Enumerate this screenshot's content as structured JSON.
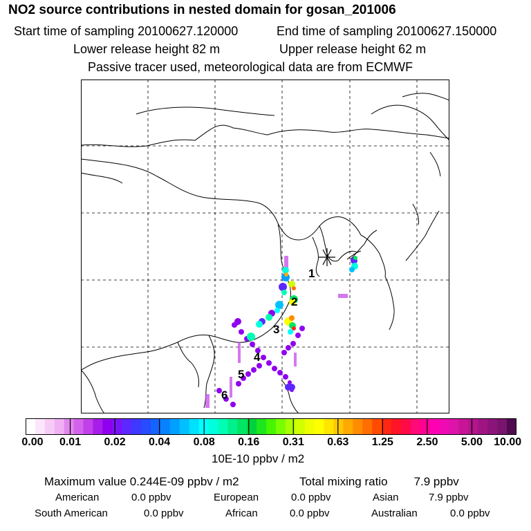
{
  "header": {
    "title": "NO2 source contributions in nested domain for gosan_201006",
    "start_label": "Start time of sampling 20100627.120000",
    "end_label": "End time of sampling 20100627.150000",
    "lower_label": "Lower release height   82 m",
    "upper_label": "Upper release height   62 m",
    "note": "Passive tracer used, meteorological data are from ECMWF"
  },
  "map": {
    "labels": [
      "1",
      "2",
      "3",
      "4",
      "5",
      "6"
    ],
    "receptor_marker": "asterisk-icon"
  },
  "colorbar": {
    "ticks": [
      "0.00",
      "0.01",
      "0.02",
      "0.04",
      "0.08",
      "0.16",
      "0.31",
      "0.63",
      "1.25",
      "2.50",
      "5.00",
      "10.00"
    ],
    "colors": [
      "#ffffff",
      "#fce6fc",
      "#f6ccf6",
      "#f0b0f4",
      "#e188ee",
      "#d363ec",
      "#c140ea",
      "#a81de9",
      "#8f00f0",
      "#7a14f8",
      "#5c28ff",
      "#3f38ff",
      "#284cff",
      "#1464ff",
      "#0682ff",
      "#00a0ff",
      "#00c0ff",
      "#00e0ff",
      "#00ffff",
      "#00ffdc",
      "#00ffb4",
      "#00f08c",
      "#00e664",
      "#00d23c",
      "#1ee61e",
      "#46f500",
      "#78ff00",
      "#aaff00",
      "#d2ff00",
      "#f0ff00",
      "#ffff00",
      "#ffe600",
      "#ffc800",
      "#ffaa00",
      "#ff8c00",
      "#ff6e00",
      "#ff4b00",
      "#ff2814",
      "#ff1428",
      "#ff0a46",
      "#ff0a78",
      "#ff0096",
      "#ff00b4",
      "#f00ab4",
      "#dc14aa",
      "#c81496",
      "#b4148c",
      "#a01482",
      "#8c1478",
      "#78146e",
      "#500a50"
    ],
    "unit": "10E-10 ppbv / m2"
  },
  "summary": {
    "max_label": "Maximum value  0.244E-09 ppbv / m2",
    "total_label": "Total mixing ratio",
    "total_value": "7.9 ppbv",
    "regions": [
      {
        "name": "American",
        "value": "0.0 ppbv"
      },
      {
        "name": "European",
        "value": "0.0 ppbv"
      },
      {
        "name": "Asian",
        "value": "7.9 ppbv"
      },
      {
        "name": "South American",
        "value": "0.0 ppbv"
      },
      {
        "name": "African",
        "value": "0.0 ppbv"
      },
      {
        "name": "Australian",
        "value": "0.0 ppbv"
      }
    ]
  }
}
